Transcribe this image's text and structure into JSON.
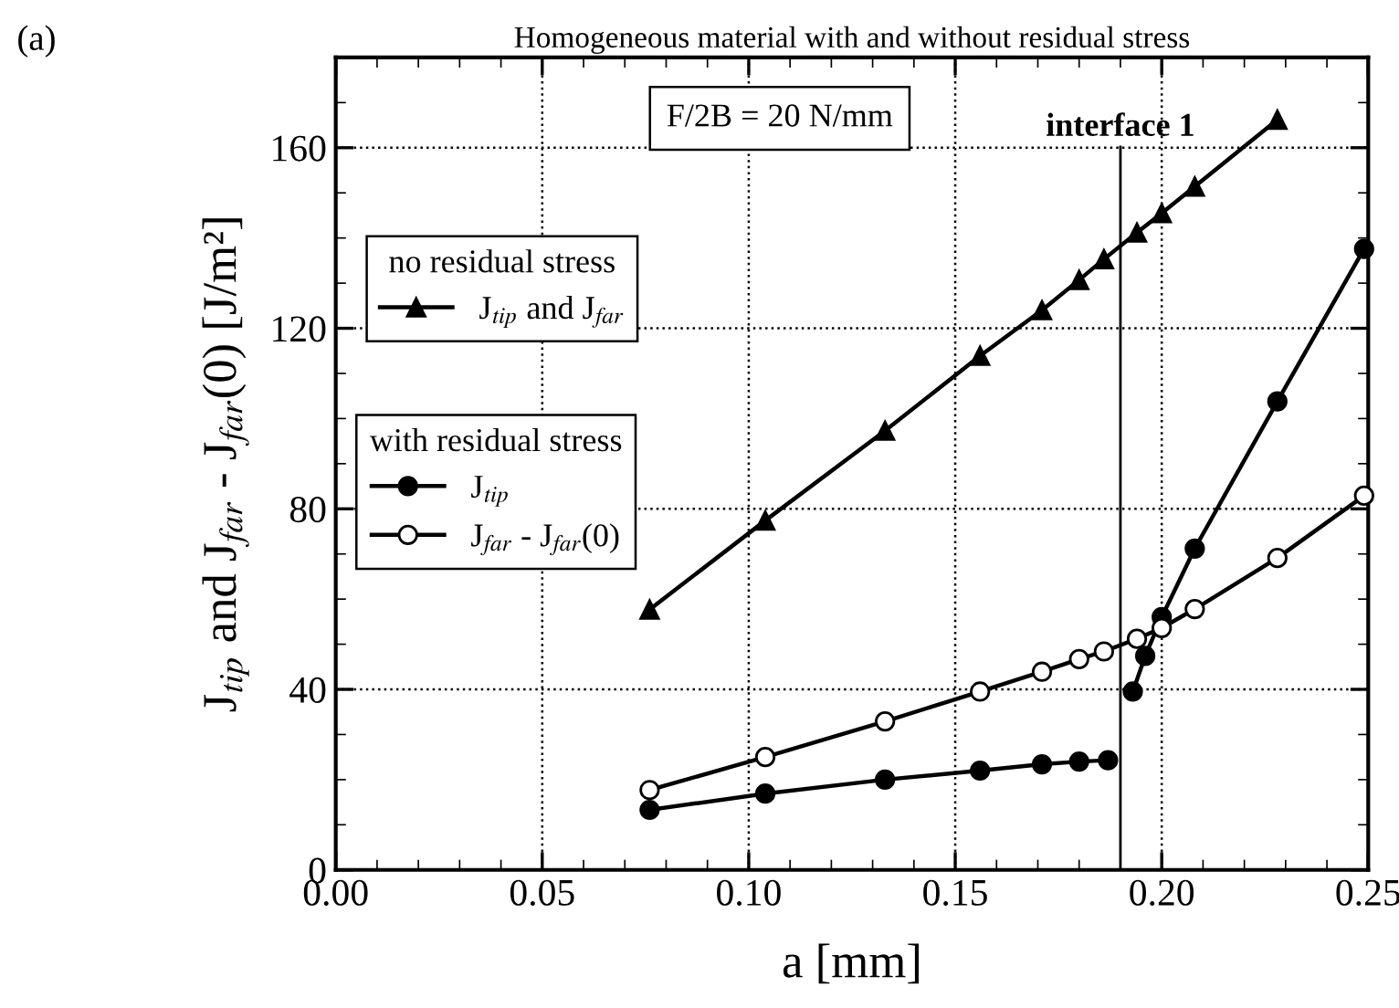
{
  "chart_data": {
    "type": "line",
    "title": "Homogeneous material with and without residual stress",
    "xlabel": "a [mm]",
    "ylabel": "J$_{tip}$ and J$_{far}$ - J$_{far}$(0) [J/m²]",
    "annotations": [
      "(a)",
      "F/2B = 20 N/mm"
    ],
    "legend_title": [
      "no residual stress",
      "with residual stress"
    ],
    "series": [
      {
        "name": "J$_{tip}$ and J$_{far}$",
        "color": "#000000",
        "marker": "triangle",
        "x": [
          0.076,
          0.104,
          0.133,
          0.156,
          0.171,
          0.18,
          0.186,
          0.194,
          0.2,
          0.208,
          0.228
        ],
        "values": [
          57.7,
          77.4,
          97.3,
          113.9,
          124.0,
          130.7,
          135.3,
          141.2,
          145.5,
          151.4,
          166.2
        ]
      },
      {
        "name": "J$_{tip}$",
        "color": "#000000",
        "marker": "circle",
        "x": [
          0.076,
          0.104,
          0.133,
          0.156,
          0.171,
          0.18,
          0.187,
          null,
          0.193,
          0.196,
          0.2,
          0.208,
          0.228,
          0.249
        ],
        "values": [
          13.3,
          16.9,
          20.0,
          22.0,
          23.4,
          24.0,
          24.3,
          null,
          39.5,
          47.4,
          56.0,
          71.2,
          103.8,
          137.6
        ]
      },
      {
        "name": "J$_{far}$ - J$_{far}$(0)",
        "color": "#000000",
        "marker": "circle",
        "x": [
          0.076,
          0.104,
          0.133,
          0.156,
          0.171,
          0.18,
          0.186,
          0.194,
          0.2,
          0.208,
          0.228,
          0.249
        ],
        "values": [
          17.7,
          25.0,
          32.9,
          39.5,
          43.9,
          46.7,
          48.4,
          51.2,
          53.6,
          57.8,
          69.1,
          82.9
        ]
      }
    ],
    "ref_lines": [
      {
        "axis": "x",
        "value": 0.19,
        "label": "interface 1",
        "color": "#000000",
        "line_style": "solid"
      }
    ],
    "xlim": [
      0,
      0.25
    ],
    "xticks": [
      {
        "value": 0,
        "label": "0.00"
      },
      {
        "value": 0.05,
        "label": "0.05"
      },
      {
        "value": 0.1,
        "label": "0.10"
      },
      {
        "value": 0.15,
        "label": "0.15"
      },
      {
        "value": 0.2,
        "label": "0.20"
      },
      {
        "value": 0.25,
        "label": "0.25"
      }
    ],
    "ylim": [
      0,
      180
    ],
    "yticks": [
      0,
      40,
      80,
      120,
      160
    ],
    "grid": true,
    "legend": "left",
    "line_style": "solid"
  }
}
